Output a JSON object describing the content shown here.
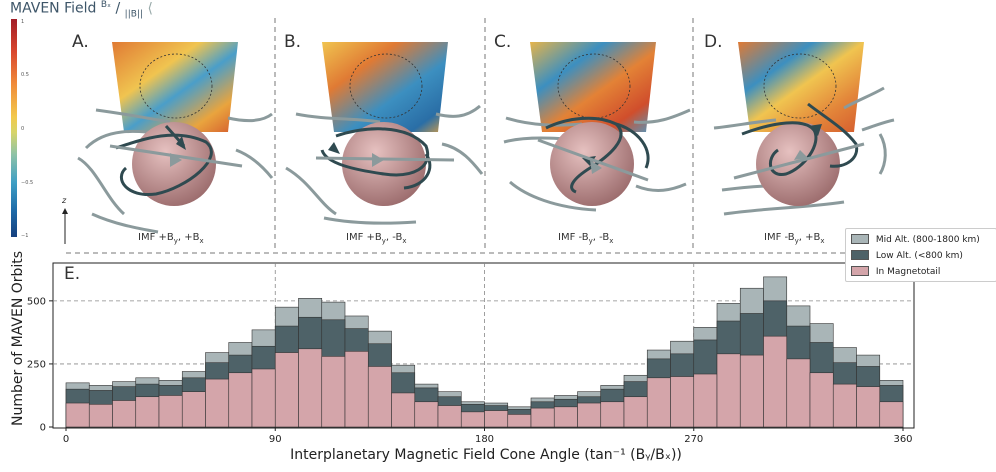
{
  "header": {
    "title_prefix": "MAVEN Field",
    "title_sup": "Bₓ",
    "title_slash": "/",
    "title_sub": "||B||"
  },
  "colorbar": {
    "ticks": [
      "1",
      "0.5",
      "0",
      "−0.5",
      "−1"
    ],
    "axis_label": "z"
  },
  "panels": [
    {
      "letter": "A.",
      "imf_label": "IMF +B",
      "imf_sub1": "y",
      "imf_mid": ", +B",
      "imf_sub2": "x"
    },
    {
      "letter": "B.",
      "imf_label": "IMF +B",
      "imf_sub1": "y",
      "imf_mid": ", -B",
      "imf_sub2": "x"
    },
    {
      "letter": "C.",
      "imf_label": "IMF -B",
      "imf_sub1": "y",
      "imf_mid": ", -B",
      "imf_sub2": "x"
    },
    {
      "letter": "D.",
      "imf_label": "IMF -B",
      "imf_sub1": "y",
      "imf_mid": ", +B",
      "imf_sub2": "x"
    }
  ],
  "chart_data": {
    "type": "bar",
    "panel_letter": "E.",
    "xlabel": "Interplanetary Magnetic Field Cone Angle (tan⁻¹ (Bᵧ/Bₓ))",
    "ylabel": "Number of MAVEN Orbits",
    "xlim": [
      0,
      360
    ],
    "ylim": [
      0,
      650
    ],
    "xticks": [
      "0",
      "90",
      "180",
      "270",
      "360"
    ],
    "yticks": [
      "0",
      "250",
      "500"
    ],
    "bin_width": 10,
    "bin_starts": [
      0,
      10,
      20,
      30,
      40,
      50,
      60,
      70,
      80,
      90,
      100,
      110,
      120,
      130,
      140,
      150,
      160,
      170,
      180,
      190,
      200,
      210,
      220,
      230,
      240,
      250,
      260,
      270,
      280,
      290,
      300,
      310,
      320,
      330,
      340,
      350
    ],
    "series": [
      {
        "name": "Mid Alt. (800-1800 km)",
        "color": "#a9b5b7",
        "values": [
          175,
          165,
          180,
          195,
          185,
          220,
          295,
          335,
          385,
          475,
          510,
          495,
          440,
          380,
          245,
          170,
          140,
          100,
          95,
          80,
          115,
          125,
          140,
          165,
          205,
          305,
          340,
          395,
          490,
          550,
          595,
          480,
          410,
          315,
          285,
          185
        ]
      },
      {
        "name": "Low Alt. (<800 km)",
        "color": "#4e6268",
        "values": [
          150,
          145,
          160,
          170,
          165,
          195,
          255,
          285,
          320,
          400,
          435,
          425,
          390,
          330,
          215,
          155,
          120,
          90,
          85,
          70,
          100,
          110,
          120,
          150,
          180,
          270,
          290,
          345,
          420,
          450,
          500,
          400,
          335,
          255,
          240,
          165
        ]
      },
      {
        "name": "In Magnetotail",
        "color": "#d4a5aa",
        "values": [
          95,
          90,
          105,
          120,
          125,
          140,
          190,
          215,
          230,
          295,
          310,
          280,
          300,
          240,
          135,
          100,
          85,
          60,
          65,
          50,
          75,
          80,
          95,
          100,
          120,
          195,
          200,
          210,
          290,
          285,
          360,
          270,
          215,
          170,
          160,
          100
        ]
      }
    ]
  }
}
